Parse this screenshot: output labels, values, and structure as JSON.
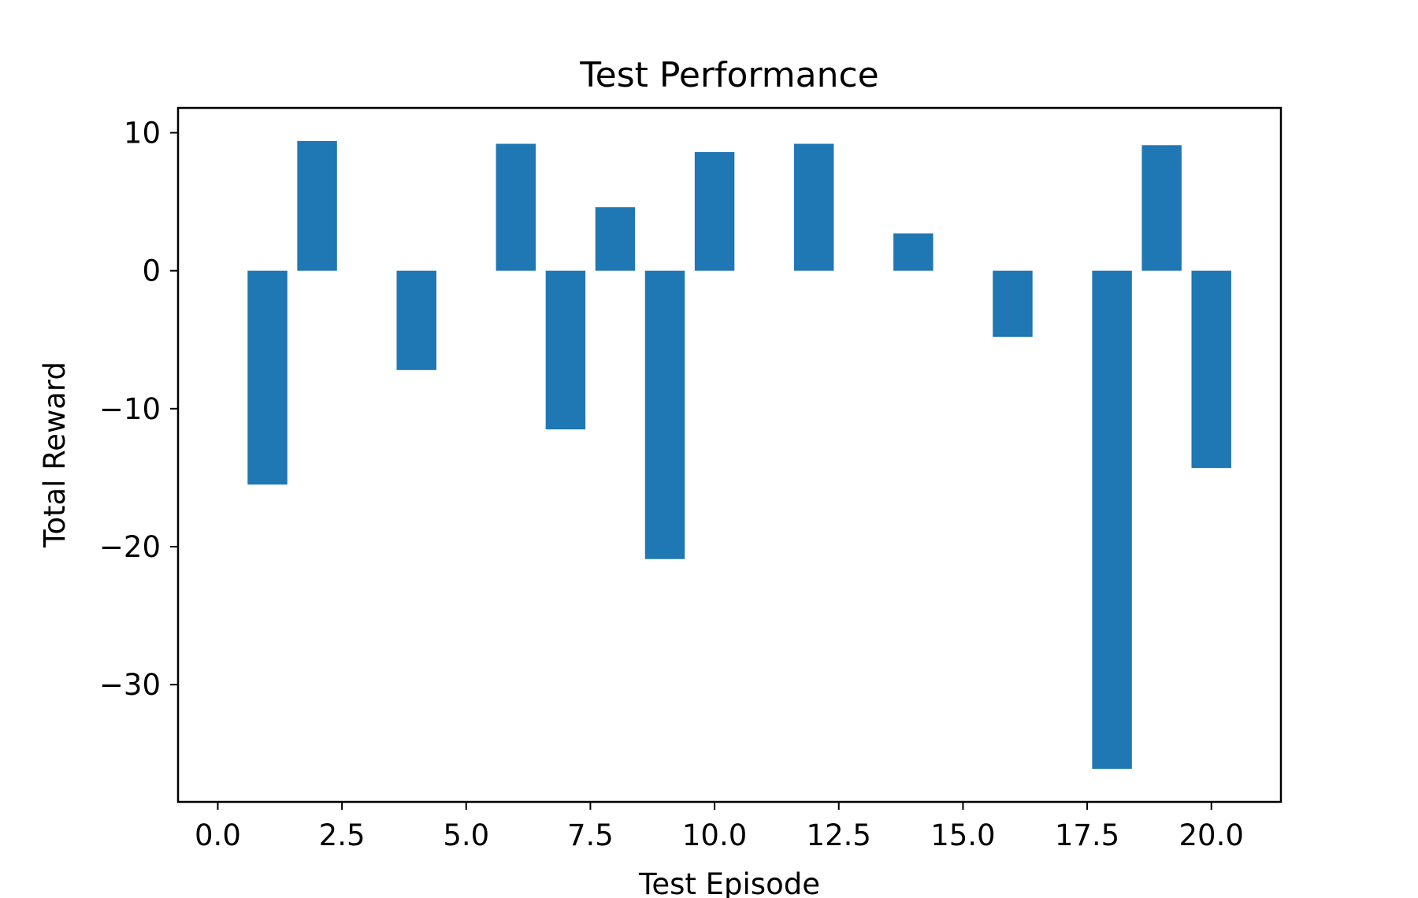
{
  "chart_data": {
    "type": "bar",
    "title": "Test Performance",
    "xlabel": "Test Episode",
    "ylabel": "Total Reward",
    "x": [
      1,
      2,
      4,
      6,
      7,
      8,
      9,
      10,
      12,
      14,
      16,
      18,
      19,
      20
    ],
    "values": [
      -15.5,
      9.4,
      -7.2,
      9.2,
      -11.5,
      4.6,
      -20.9,
      8.6,
      9.2,
      2.7,
      -4.8,
      -36.1,
      9.1,
      -14.3
    ],
    "bar_width": 0.8,
    "xlim": [
      -0.8,
      21.4
    ],
    "ylim": [
      -38.5,
      11.8
    ],
    "xticks": [
      0.0,
      2.5,
      5.0,
      7.5,
      10.0,
      12.5,
      15.0,
      17.5,
      20.0
    ],
    "xtick_labels": [
      "0.0",
      "2.5",
      "5.0",
      "7.5",
      "10.0",
      "12.5",
      "15.0",
      "17.5",
      "20.0"
    ],
    "yticks": [
      10,
      0,
      -10,
      -20,
      -30
    ],
    "ytick_labels": [
      "10",
      "0",
      "−10",
      "−20",
      "−30"
    ],
    "grid": false,
    "legend": "none",
    "colors": {
      "bar": "#1f77b4"
    }
  }
}
